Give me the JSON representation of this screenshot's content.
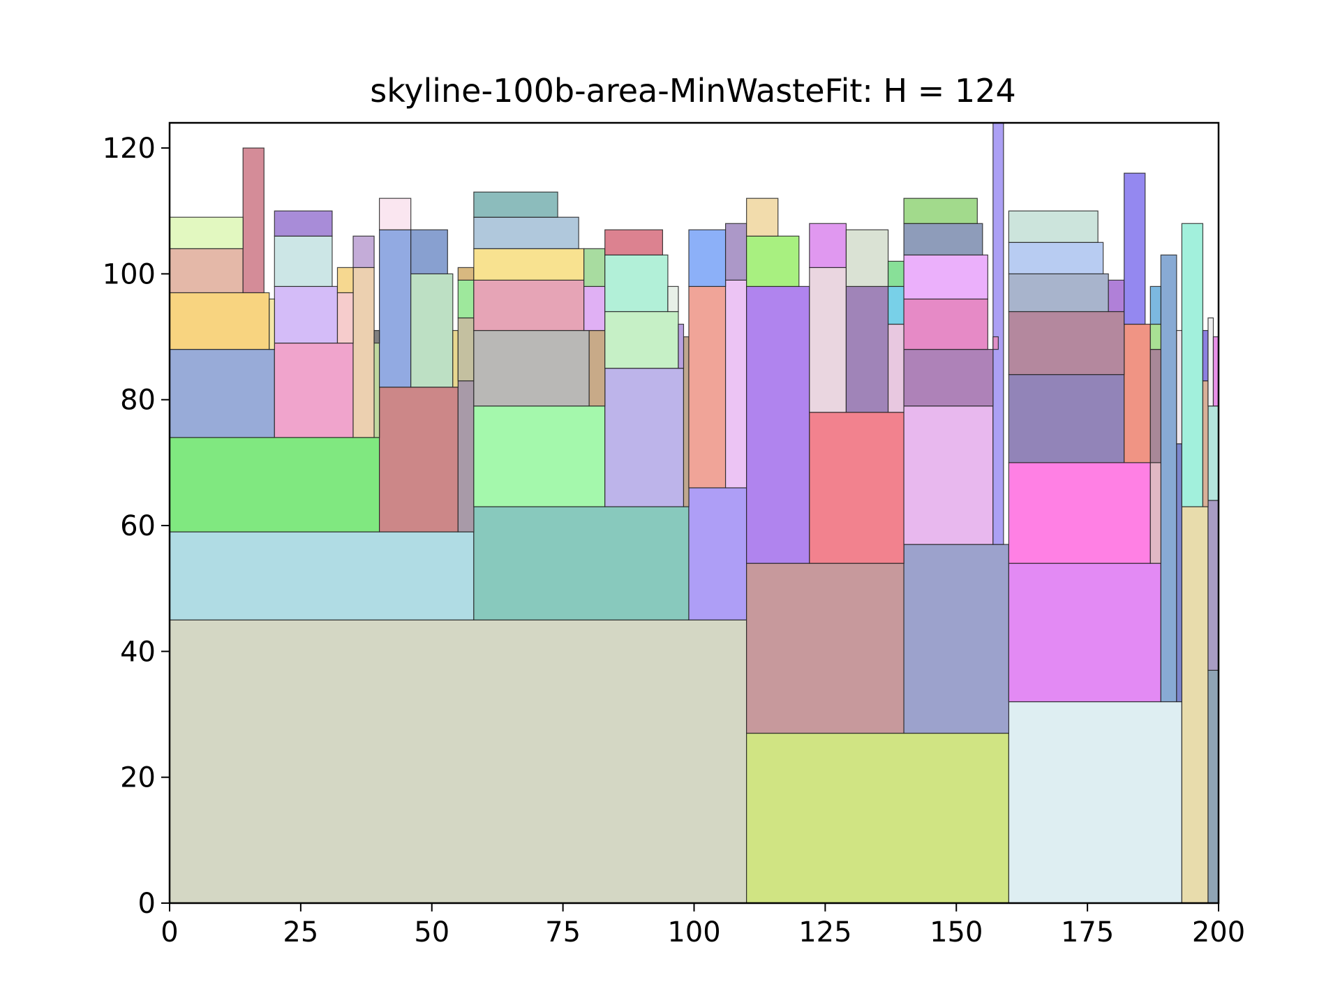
{
  "chart_data": {
    "type": "bar",
    "title": "skyline-100b-area-MinWasteFit: H = 124",
    "xlabel": "",
    "ylabel": "",
    "xlim": [
      0,
      200
    ],
    "ylim": [
      0,
      124
    ],
    "xticks": [
      0,
      25,
      50,
      75,
      100,
      125,
      150,
      175,
      200
    ],
    "yticks": [
      0,
      20,
      40,
      60,
      80,
      100,
      120
    ],
    "grid": false,
    "rects": [
      {
        "x": 0,
        "y": 0,
        "w": 110,
        "h": 45,
        "color": "#d4d7c4"
      },
      {
        "x": 110,
        "y": 0,
        "w": 50,
        "h": 27,
        "color": "#d0e483"
      },
      {
        "x": 160,
        "y": 0,
        "w": 33,
        "h": 32,
        "color": "#deeef2"
      },
      {
        "x": 193,
        "y": 0,
        "w": 5,
        "h": 63,
        "color": "#e8dcac"
      },
      {
        "x": 198,
        "y": 0,
        "w": 2,
        "h": 37,
        "color": "#8fa4b4"
      },
      {
        "x": 198,
        "y": 37,
        "w": 2,
        "h": 27,
        "color": "#a89cc4"
      },
      {
        "x": 198,
        "y": 64,
        "w": 2,
        "h": 15,
        "color": "#b4e4dc"
      },
      {
        "x": 0,
        "y": 45,
        "w": 58,
        "h": 14,
        "color": "#b0dce4"
      },
      {
        "x": 58,
        "y": 45,
        "w": 41,
        "h": 18,
        "color": "#88c9bd"
      },
      {
        "x": 99,
        "y": 45,
        "w": 11,
        "h": 21,
        "color": "#ae9ef6"
      },
      {
        "x": 110,
        "y": 27,
        "w": 30,
        "h": 27,
        "color": "#c7999c"
      },
      {
        "x": 140,
        "y": 27,
        "w": 20,
        "h": 30,
        "color": "#9ca2cc"
      },
      {
        "x": 160,
        "y": 32,
        "w": 29,
        "h": 22,
        "color": "#e38af4"
      },
      {
        "x": 189,
        "y": 32,
        "w": 3,
        "h": 71,
        "color": "#88aad4"
      },
      {
        "x": 192,
        "y": 32,
        "w": 1,
        "h": 41,
        "color": "#7c86cc"
      },
      {
        "x": 0,
        "y": 59,
        "w": 40,
        "h": 15,
        "color": "#80e880"
      },
      {
        "x": 40,
        "y": 59,
        "w": 15,
        "h": 23,
        "color": "#cc8788"
      },
      {
        "x": 55,
        "y": 59,
        "w": 3,
        "h": 24,
        "color": "#a89aa8"
      },
      {
        "x": 0,
        "y": 74,
        "w": 20,
        "h": 14,
        "color": "#98abd8"
      },
      {
        "x": 20,
        "y": 74,
        "w": 15,
        "h": 15,
        "color": "#f0a4cc"
      },
      {
        "x": 35,
        "y": 74,
        "w": 4,
        "h": 27,
        "color": "#ecd0b0"
      },
      {
        "x": 39,
        "y": 74,
        "w": 1,
        "h": 16,
        "color": "#c0d8a0"
      },
      {
        "x": 40,
        "y": 82,
        "w": 6,
        "h": 25,
        "color": "#92aae2"
      },
      {
        "x": 46,
        "y": 82,
        "w": 8,
        "h": 18,
        "color": "#bde0c4"
      },
      {
        "x": 54,
        "y": 82,
        "w": 1,
        "h": 9,
        "color": "#e8d890"
      },
      {
        "x": 55,
        "y": 83,
        "w": 3,
        "h": 10,
        "color": "#c4c0a0"
      },
      {
        "x": 55,
        "y": 93,
        "w": 3,
        "h": 6,
        "color": "#9ee89c"
      },
      {
        "x": 55,
        "y": 99,
        "w": 3,
        "h": 2,
        "color": "#d8b880"
      },
      {
        "x": 58,
        "y": 63,
        "w": 25,
        "h": 16,
        "color": "#a4f8ac"
      },
      {
        "x": 83,
        "y": 63,
        "w": 15,
        "h": 22,
        "color": "#bdb4ea"
      },
      {
        "x": 98,
        "y": 63,
        "w": 1,
        "h": 27,
        "color": "#c0a890"
      },
      {
        "x": 58,
        "y": 79,
        "w": 22,
        "h": 12,
        "color": "#b9b8b6"
      },
      {
        "x": 80,
        "y": 79,
        "w": 3,
        "h": 12,
        "color": "#c8aa88"
      },
      {
        "x": 58,
        "y": 91,
        "w": 21,
        "h": 8,
        "color": "#e6a4b6"
      },
      {
        "x": 79,
        "y": 91,
        "w": 4,
        "h": 7,
        "color": "#e0b0f4"
      },
      {
        "x": 58,
        "y": 99,
        "w": 21,
        "h": 5,
        "color": "#f8e290"
      },
      {
        "x": 79,
        "y": 98,
        "w": 4,
        "h": 6,
        "color": "#a8dca0"
      },
      {
        "x": 58,
        "y": 104,
        "w": 20,
        "h": 5,
        "color": "#b0c8dc"
      },
      {
        "x": 58,
        "y": 109,
        "w": 16,
        "h": 4,
        "color": "#8cbcbc"
      },
      {
        "x": 83,
        "y": 85,
        "w": 14,
        "h": 9,
        "color": "#c6f0c6"
      },
      {
        "x": 97,
        "y": 85,
        "w": 1,
        "h": 7,
        "color": "#b8a0e0"
      },
      {
        "x": 83,
        "y": 94,
        "w": 12,
        "h": 9,
        "color": "#b2f0d8"
      },
      {
        "x": 95,
        "y": 94,
        "w": 2,
        "h": 4,
        "color": "#e8f0e8"
      },
      {
        "x": 83,
        "y": 103,
        "w": 11,
        "h": 4,
        "color": "#dc8290"
      },
      {
        "x": 99,
        "y": 66,
        "w": 7,
        "h": 32,
        "color": "#f0a498"
      },
      {
        "x": 106,
        "y": 66,
        "w": 4,
        "h": 33,
        "color": "#ecc4f4"
      },
      {
        "x": 99,
        "y": 98,
        "w": 7,
        "h": 9,
        "color": "#8cb0f8"
      },
      {
        "x": 106,
        "y": 99,
        "w": 4,
        "h": 9,
        "color": "#ac98c8"
      },
      {
        "x": 110,
        "y": 54,
        "w": 12,
        "h": 44,
        "color": "#b084ee"
      },
      {
        "x": 110,
        "y": 98,
        "w": 10,
        "h": 8,
        "color": "#a8f080"
      },
      {
        "x": 110,
        "y": 106,
        "w": 6,
        "h": 6,
        "color": "#f2dcac"
      },
      {
        "x": 122,
        "y": 54,
        "w": 18,
        "h": 24,
        "color": "#f2828e"
      },
      {
        "x": 122,
        "y": 78,
        "w": 7,
        "h": 23,
        "color": "#ead6e0"
      },
      {
        "x": 122,
        "y": 101,
        "w": 7,
        "h": 7,
        "color": "#e098f0"
      },
      {
        "x": 129,
        "y": 78,
        "w": 8,
        "h": 20,
        "color": "#a084b8"
      },
      {
        "x": 129,
        "y": 98,
        "w": 8,
        "h": 9,
        "color": "#dae2d4"
      },
      {
        "x": 137,
        "y": 78,
        "w": 3,
        "h": 14,
        "color": "#e8c8e0"
      },
      {
        "x": 137,
        "y": 92,
        "w": 3,
        "h": 6,
        "color": "#78d0e8"
      },
      {
        "x": 137,
        "y": 98,
        "w": 3,
        "h": 4,
        "color": "#88e098"
      },
      {
        "x": 140,
        "y": 57,
        "w": 17,
        "h": 22,
        "color": "#e8b8ee"
      },
      {
        "x": 157,
        "y": 57,
        "w": 2,
        "h": 67,
        "color": "#aca0f4"
      },
      {
        "x": 140,
        "y": 79,
        "w": 17,
        "h": 9,
        "color": "#ae82b8"
      },
      {
        "x": 157,
        "y": 88,
        "w": 1,
        "h": 2,
        "color": "#e090c8"
      },
      {
        "x": 140,
        "y": 88,
        "w": 16,
        "h": 8,
        "color": "#e68ac6"
      },
      {
        "x": 140,
        "y": 96,
        "w": 16,
        "h": 7,
        "color": "#ebb0fb"
      },
      {
        "x": 140,
        "y": 103,
        "w": 15,
        "h": 5,
        "color": "#8e9cba"
      },
      {
        "x": 140,
        "y": 108,
        "w": 14,
        "h": 4,
        "color": "#a2da8c"
      },
      {
        "x": 160,
        "y": 54,
        "w": 27,
        "h": 16,
        "color": "#ff80e4"
      },
      {
        "x": 187,
        "y": 54,
        "w": 2,
        "h": 16,
        "color": "#e0b8c4"
      },
      {
        "x": 160,
        "y": 70,
        "w": 22,
        "h": 14,
        "color": "#9284b8"
      },
      {
        "x": 182,
        "y": 70,
        "w": 5,
        "h": 22,
        "color": "#f09484"
      },
      {
        "x": 187,
        "y": 70,
        "w": 2,
        "h": 18,
        "color": "#a88898"
      },
      {
        "x": 160,
        "y": 84,
        "w": 22,
        "h": 10,
        "color": "#b4889e"
      },
      {
        "x": 160,
        "y": 94,
        "w": 19,
        "h": 6,
        "color": "#a8b4cc"
      },
      {
        "x": 179,
        "y": 94,
        "w": 3,
        "h": 5,
        "color": "#b080d8"
      },
      {
        "x": 160,
        "y": 100,
        "w": 18,
        "h": 5,
        "color": "#b8ccf2"
      },
      {
        "x": 160,
        "y": 105,
        "w": 17,
        "h": 5,
        "color": "#cce4dc"
      },
      {
        "x": 182,
        "y": 92,
        "w": 4,
        "h": 24,
        "color": "#9488f0"
      },
      {
        "x": 187,
        "y": 88,
        "w": 2,
        "h": 4,
        "color": "#a8e094"
      },
      {
        "x": 187,
        "y": 92,
        "w": 2,
        "h": 6,
        "color": "#7cb8e0"
      },
      {
        "x": 193,
        "y": 63,
        "w": 4,
        "h": 45,
        "color": "#a2f0dc"
      },
      {
        "x": 197,
        "y": 63,
        "w": 1,
        "h": 20,
        "color": "#d8b098"
      },
      {
        "x": 197,
        "y": 83,
        "w": 1,
        "h": 8,
        "color": "#8c80e0"
      },
      {
        "x": 198,
        "y": 79,
        "w": 1,
        "h": 14,
        "color": "#f0f0f0"
      },
      {
        "x": 199,
        "y": 79,
        "w": 1,
        "h": 11,
        "color": "#e890e8"
      },
      {
        "x": 192,
        "y": 73,
        "w": 1,
        "h": 18,
        "color": "#f0e8ee"
      },
      {
        "x": 20,
        "y": 89,
        "w": 12,
        "h": 9,
        "color": "#d4bcf8"
      },
      {
        "x": 32,
        "y": 89,
        "w": 3,
        "h": 8,
        "color": "#f6cccc"
      },
      {
        "x": 32,
        "y": 97,
        "w": 3,
        "h": 4,
        "color": "#f6d890"
      },
      {
        "x": 20,
        "y": 98,
        "w": 11,
        "h": 8,
        "color": "#cce6e6"
      },
      {
        "x": 20,
        "y": 106,
        "w": 11,
        "h": 4,
        "color": "#a88cd8"
      },
      {
        "x": 35,
        "y": 101,
        "w": 4,
        "h": 5,
        "color": "#c4acd8"
      },
      {
        "x": 39,
        "y": 89,
        "w": 1,
        "h": 2,
        "color": "#808080"
      },
      {
        "x": 0,
        "y": 88,
        "w": 19,
        "h": 9,
        "color": "#f8d480"
      },
      {
        "x": 19,
        "y": 88,
        "w": 1,
        "h": 8,
        "color": "#f4e8a8"
      },
      {
        "x": 0,
        "y": 97,
        "w": 14,
        "h": 7,
        "color": "#e4b8a8"
      },
      {
        "x": 14,
        "y": 97,
        "w": 4,
        "h": 23,
        "color": "#d48c98"
      },
      {
        "x": 0,
        "y": 104,
        "w": 14,
        "h": 5,
        "color": "#e2f8c0"
      },
      {
        "x": 40,
        "y": 107,
        "w": 6,
        "h": 5,
        "color": "#fae6f0"
      },
      {
        "x": 46,
        "y": 100,
        "w": 7,
        "h": 7,
        "color": "#88a0d0"
      }
    ]
  }
}
